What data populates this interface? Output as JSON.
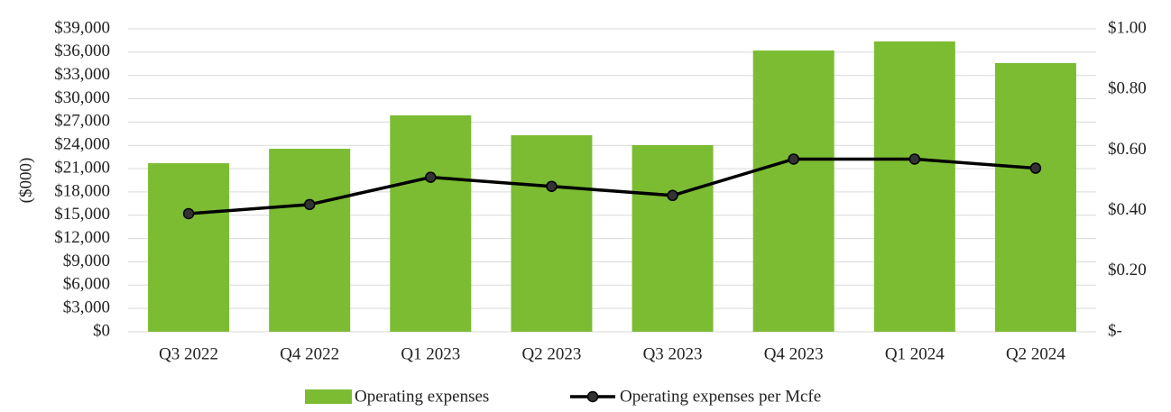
{
  "chart_data": {
    "type": "bar_line",
    "categories": [
      "Q3 2022",
      "Q4 2022",
      "Q1 2023",
      "Q2 2023",
      "Q3 2023",
      "Q4 2023",
      "Q1 2024",
      "Q2 2024"
    ],
    "y_label": "($000)",
    "series": [
      {
        "name": "Operating expenses",
        "type": "bar",
        "color": "#7cbc33",
        "values": [
          21700,
          23560,
          27860,
          25300,
          24030,
          36210,
          37380,
          34590
        ]
      },
      {
        "name": "Operating expenses per Mcfe",
        "type": "line",
        "axis": "y2",
        "color": "#000000",
        "values": [
          0.39,
          0.42,
          0.51,
          0.48,
          0.45,
          0.57,
          0.57,
          0.54
        ]
      }
    ],
    "ylim": [
      0,
      39000
    ],
    "yticks": [
      {
        "value": 0,
        "label": "$0"
      },
      {
        "value": 3000,
        "label": "$3,000"
      },
      {
        "value": 6000,
        "label": "$6,000"
      },
      {
        "value": 9000,
        "label": "$9,000"
      },
      {
        "value": 12000,
        "label": "$12,000"
      },
      {
        "value": 15000,
        "label": "$15,000"
      },
      {
        "value": 18000,
        "label": "$18,000"
      },
      {
        "value": 21000,
        "label": "$21,000"
      },
      {
        "value": 24000,
        "label": "$24,000"
      },
      {
        "value": 27000,
        "label": "$27,000"
      },
      {
        "value": 30000,
        "label": "$30,000"
      },
      {
        "value": 33000,
        "label": "$33,000"
      },
      {
        "value": 36000,
        "label": "$36,000"
      },
      {
        "value": 39000,
        "label": "$39,000"
      }
    ],
    "y2lim": [
      0,
      1
    ],
    "y2ticks": [
      {
        "value": 0,
        "label": "$-"
      },
      {
        "value": 0.2,
        "label": "$0.20"
      },
      {
        "value": 0.4,
        "label": "$0.40"
      },
      {
        "value": 0.6,
        "label": "$0.60"
      },
      {
        "value": 0.8,
        "label": "$0.80"
      },
      {
        "value": 1,
        "label": "$1.00"
      }
    ],
    "grid": true,
    "legend": "bottom"
  }
}
